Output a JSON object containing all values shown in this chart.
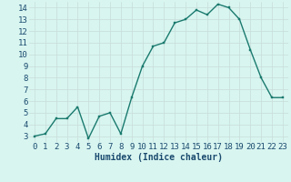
{
  "x": [
    0,
    1,
    2,
    3,
    4,
    5,
    6,
    7,
    8,
    9,
    10,
    11,
    12,
    13,
    14,
    15,
    16,
    17,
    18,
    19,
    20,
    21,
    22,
    23
  ],
  "y": [
    3.0,
    3.2,
    4.5,
    4.5,
    5.5,
    2.8,
    4.7,
    5.0,
    3.2,
    6.3,
    9.0,
    10.7,
    11.0,
    12.7,
    13.0,
    13.8,
    13.4,
    14.3,
    14.0,
    13.0,
    10.4,
    8.0,
    6.3,
    6.3
  ],
  "line_color": "#1a7a6e",
  "marker_color": "#1a7a6e",
  "bg_color": "#d8f5f0",
  "grid_color": "#c8dcd8",
  "xlabel": "Humidex (Indice chaleur)",
  "xlim": [
    -0.5,
    23.5
  ],
  "ylim": [
    2.5,
    14.5
  ],
  "yticks": [
    3,
    4,
    5,
    6,
    7,
    8,
    9,
    10,
    11,
    12,
    13,
    14
  ],
  "xticks": [
    0,
    1,
    2,
    3,
    4,
    5,
    6,
    7,
    8,
    9,
    10,
    11,
    12,
    13,
    14,
    15,
    16,
    17,
    18,
    19,
    20,
    21,
    22,
    23
  ],
  "font_size": 6.5,
  "marker_size": 2.0,
  "line_width": 1.0
}
